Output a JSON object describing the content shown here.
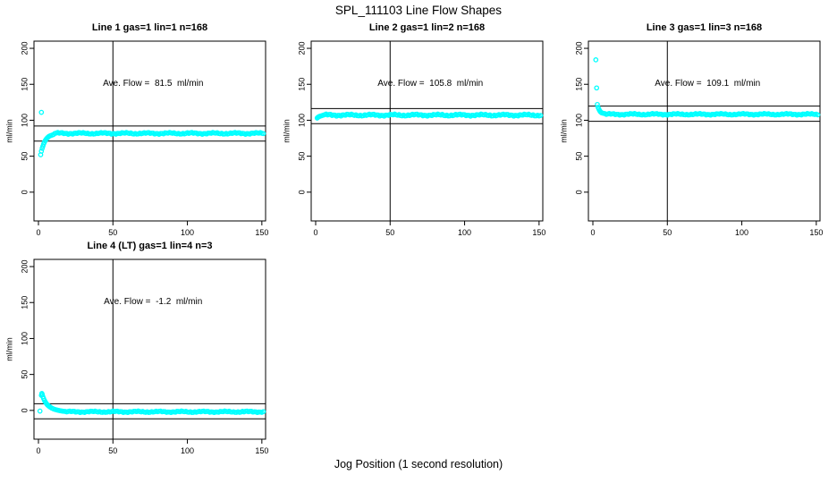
{
  "figure": {
    "title": "SPL_111103  Line Flow Shapes",
    "xlabel": "Jog Position (1 second resolution)",
    "ylabel": "ml/min",
    "point_color": "#00ffff",
    "line_color": "#000000",
    "background": "#ffffff"
  },
  "chart_data": [
    {
      "type": "scatter",
      "title": "Line 1 gas=1 lin=1 n=168",
      "annotation": "Ave. Flow =  81.5  ml/min",
      "ave_flow": 81.5,
      "ylabel": "ml/min",
      "x_ticks": [
        0,
        50,
        100,
        150
      ],
      "y_ticks": [
        0,
        50,
        100,
        150,
        200
      ],
      "xlim": [
        -3,
        152.5
      ],
      "ylim": [
        -40,
        210
      ],
      "vline_x": 50,
      "hlines": [
        92,
        71
      ],
      "transient_points": [
        [
          1.5,
          52
        ],
        [
          2,
          111
        ],
        [
          2,
          57
        ],
        [
          2.5,
          61
        ],
        [
          3,
          64
        ],
        [
          3.5,
          67
        ],
        [
          4,
          69.5
        ],
        [
          4.5,
          71.5
        ],
        [
          5,
          73
        ],
        [
          5.5,
          74.5
        ],
        [
          6,
          75.5
        ],
        [
          6.5,
          76.5
        ],
        [
          7,
          77.5
        ],
        [
          8,
          78.5
        ],
        [
          9,
          79.3
        ],
        [
          10,
          80
        ]
      ],
      "plateau": {
        "x_start": 11,
        "x_end": 151,
        "step": 1,
        "y": 81.8,
        "jitter": 1.3
      }
    },
    {
      "type": "scatter",
      "title": "Line 2 gas=1 lin=2 n=168",
      "annotation": "Ave. Flow =  105.8  ml/min",
      "ave_flow": 105.8,
      "ylabel": "ml/min",
      "x_ticks": [
        0,
        50,
        100,
        150
      ],
      "y_ticks": [
        0,
        50,
        100,
        150,
        200
      ],
      "xlim": [
        -3,
        152.5
      ],
      "ylim": [
        -40,
        210
      ],
      "vline_x": 50,
      "hlines": [
        116.3,
        95.3
      ],
      "transient_points": [
        [
          1,
          103
        ],
        [
          1.5,
          104
        ],
        [
          2,
          104.8
        ],
        [
          2.5,
          105.3
        ],
        [
          3,
          105.8
        ],
        [
          4,
          106.3
        ]
      ],
      "plateau": {
        "x_start": 5,
        "x_end": 151,
        "step": 1,
        "y": 107.2,
        "jitter": 1.5
      }
    },
    {
      "type": "scatter",
      "title": "Line 3 gas=1 lin=3 n=168",
      "annotation": "Ave. Flow =  109.1  ml/min",
      "ave_flow": 109.1,
      "ylabel": "ml/min",
      "x_ticks": [
        0,
        50,
        100,
        150
      ],
      "y_ticks": [
        0,
        50,
        100,
        150,
        200
      ],
      "xlim": [
        -3,
        152.5
      ],
      "ylim": [
        -40,
        210
      ],
      "vline_x": 50,
      "hlines": [
        119.6,
        98.6
      ],
      "transient_points": [
        [
          2,
          184
        ],
        [
          2.5,
          145
        ],
        [
          3,
          122
        ],
        [
          3.5,
          118
        ],
        [
          4,
          115.5
        ],
        [
          4.5,
          113.5
        ],
        [
          5,
          112
        ],
        [
          5.5,
          111
        ],
        [
          6,
          110.3
        ],
        [
          7,
          109.6
        ],
        [
          8,
          109.2
        ]
      ],
      "plateau": {
        "x_start": 9,
        "x_end": 151,
        "step": 1,
        "y": 108.3,
        "jitter": 1.2
      }
    },
    {
      "type": "scatter",
      "title": "Line 4 (LT) gas=1 lin=4 n=3",
      "annotation": "Ave. Flow =  -1.2  ml/min",
      "ave_flow": -1.2,
      "ylabel": "ml/min",
      "x_ticks": [
        0,
        50,
        100,
        150
      ],
      "y_ticks": [
        0,
        50,
        100,
        150,
        200
      ],
      "xlim": [
        -3,
        152.5
      ],
      "ylim": [
        -40,
        210
      ],
      "vline_x": 50,
      "hlines": [
        9.3,
        -11.7
      ],
      "transient_points": [
        [
          1,
          -1
        ],
        [
          2,
          21
        ],
        [
          2.3,
          23.5
        ],
        [
          2.6,
          22
        ],
        [
          3,
          19
        ],
        [
          3.5,
          16.5
        ],
        [
          4,
          14
        ],
        [
          4.5,
          12
        ],
        [
          5,
          10.5
        ],
        [
          5.5,
          9
        ],
        [
          6,
          7.8
        ],
        [
          6.5,
          6.8
        ],
        [
          7,
          6
        ],
        [
          7.5,
          5.2
        ],
        [
          8,
          4.5
        ],
        [
          9,
          3.2
        ],
        [
          10,
          2.2
        ],
        [
          11,
          1.4
        ],
        [
          12,
          0.8
        ],
        [
          13,
          0.3
        ],
        [
          14,
          -0.2
        ],
        [
          15,
          -0.6
        ],
        [
          16,
          -0.9
        ],
        [
          17,
          -1.2
        ],
        [
          18,
          -1.4
        ]
      ],
      "plateau": {
        "x_start": 19,
        "x_end": 151,
        "step": 1,
        "y": -1.9,
        "jitter": 1.1
      }
    }
  ]
}
